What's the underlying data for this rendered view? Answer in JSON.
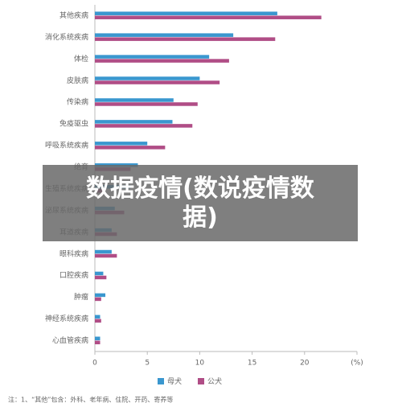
{
  "chart_data": {
    "type": "barh",
    "banner": "数据疫情(数说疫情数据)",
    "footnote": "注：1、“其他”包含：外科、老年病、住院、开药、寄养等",
    "categories": [
      "其他疾病",
      "消化系统疾病",
      "体检",
      "皮肤病",
      "传染病",
      "免疫驱虫",
      "呼吸系统疾病",
      "绝育",
      "生殖系统疾病",
      "泌尿系统疾病",
      "耳道疾病",
      "眼科疾病",
      "口腔疾病",
      "肿瘤",
      "神经系统疾病",
      "心血管疾病"
    ],
    "series": [
      {
        "name": "母犬",
        "color": "#3a97cf",
        "values": [
          17.4,
          13.2,
          10.9,
          10.0,
          7.5,
          7.4,
          5.0,
          4.1,
          3.4,
          1.9,
          1.6,
          1.6,
          0.8,
          1.0,
          0.5,
          0.5
        ]
      },
      {
        "name": "公犬",
        "color": "#b04d86",
        "values": [
          21.6,
          17.2,
          12.8,
          11.9,
          9.8,
          9.3,
          6.7,
          3.4,
          0.8,
          2.8,
          2.1,
          2.1,
          1.1,
          0.6,
          0.6,
          0.5
        ]
      }
    ],
    "xlim": [
      0,
      25
    ],
    "xticks": [
      0,
      5,
      10,
      15,
      20,
      {
        "value": 25,
        "label": "(%)"
      }
    ],
    "legend": "bottom"
  }
}
